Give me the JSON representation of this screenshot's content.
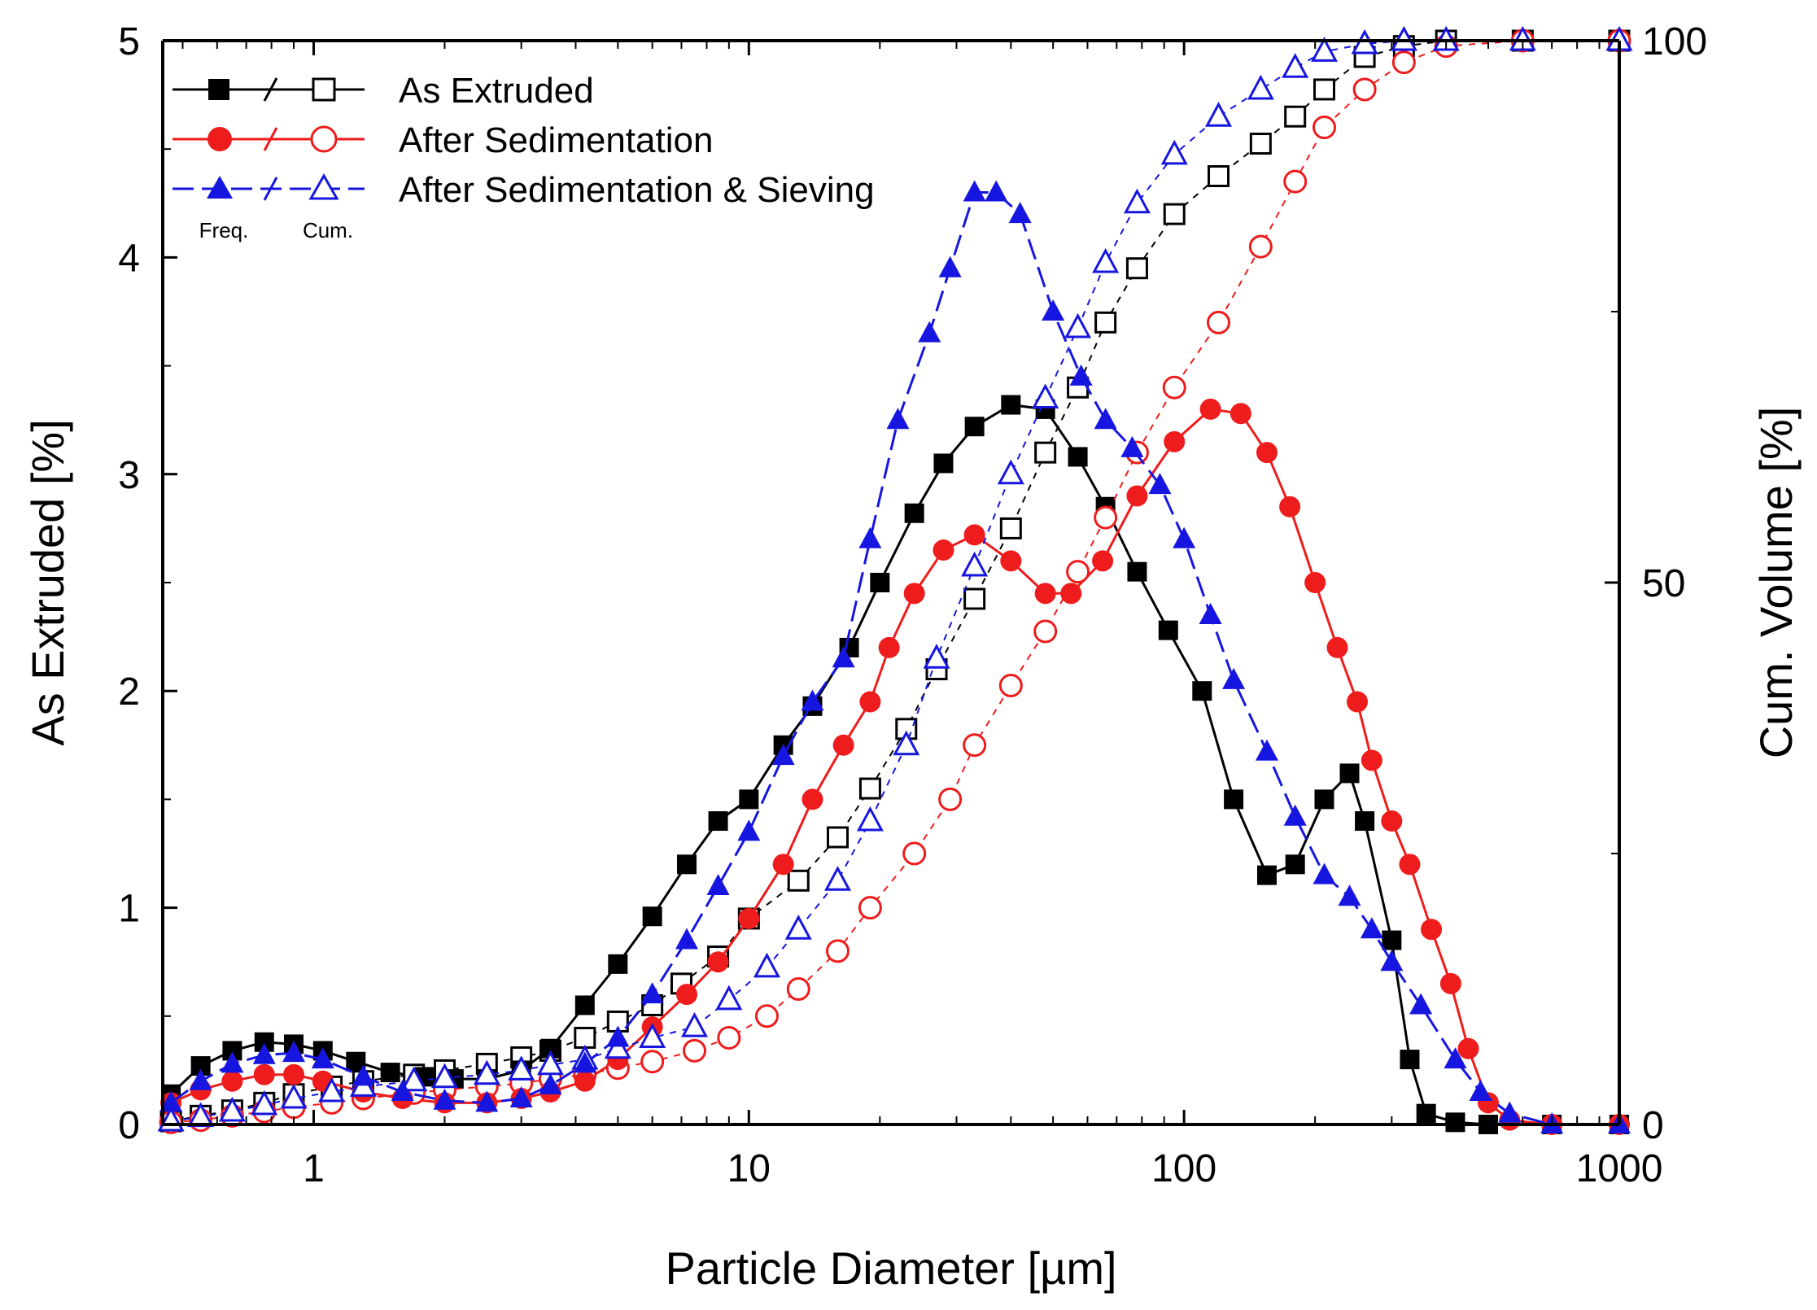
{
  "chart_data": {
    "type": "line",
    "xlabel": "Particle  Diameter [µm]",
    "ylabel_left": "As Extruded [%]",
    "ylabel_right": "Cum. Volume [%]",
    "x_scale": "log",
    "xlim": [
      0.45,
      1000
    ],
    "ylim_left": [
      0,
      5
    ],
    "ylim_right": [
      0,
      100
    ],
    "x_ticks": [
      1,
      10,
      100,
      1000
    ],
    "x_tick_labels": [
      "1",
      "10",
      "100",
      "1000"
    ],
    "y_left_ticks": [
      0,
      1,
      2,
      3,
      4,
      5
    ],
    "y_left_tick_labels": [
      "0",
      "1",
      "2",
      "3",
      "4",
      "5"
    ],
    "y_right_ticks": [
      0,
      50,
      100
    ],
    "y_right_tick_labels": [
      "0",
      "50",
      "100"
    ],
    "legend": {
      "col_freq": "Freq.",
      "col_cum": "Cum.",
      "entries": [
        "As Extruded",
        "After Sedimentation",
        "After Sedimentation & Sieving"
      ]
    },
    "colors": {
      "As Extruded": "#000000",
      "After Sedimentation": "#ee1c1c",
      "After Sedimentation & Sieving": "#1616e0"
    },
    "series": [
      {
        "name": "As Extruded",
        "marker": "square",
        "freq_points": [
          [
            0.47,
            0.14
          ],
          [
            0.55,
            0.27
          ],
          [
            0.65,
            0.34
          ],
          [
            0.77,
            0.38
          ],
          [
            0.9,
            0.37
          ],
          [
            1.05,
            0.34
          ],
          [
            1.25,
            0.29
          ],
          [
            1.5,
            0.24
          ],
          [
            1.8,
            0.22
          ],
          [
            2.1,
            0.21
          ],
          [
            2.5,
            0.21
          ],
          [
            3.0,
            0.25
          ],
          [
            3.5,
            0.35
          ],
          [
            4.2,
            0.55
          ],
          [
            5.0,
            0.74
          ],
          [
            6.0,
            0.96
          ],
          [
            7.2,
            1.2
          ],
          [
            8.5,
            1.4
          ],
          [
            10,
            1.5
          ],
          [
            12,
            1.75
          ],
          [
            14,
            1.93
          ],
          [
            17,
            2.2
          ],
          [
            20,
            2.5
          ],
          [
            24,
            2.82
          ],
          [
            28,
            3.05
          ],
          [
            33,
            3.22
          ],
          [
            40,
            3.32
          ],
          [
            48,
            3.3
          ],
          [
            57,
            3.08
          ],
          [
            66,
            2.85
          ],
          [
            78,
            2.55
          ],
          [
            92,
            2.28
          ],
          [
            110,
            2.0
          ],
          [
            130,
            1.5
          ],
          [
            155,
            1.15
          ],
          [
            180,
            1.2
          ],
          [
            210,
            1.5
          ],
          [
            240,
            1.62
          ],
          [
            260,
            1.4
          ],
          [
            300,
            0.85
          ],
          [
            330,
            0.3
          ],
          [
            360,
            0.05
          ],
          [
            420,
            0.01
          ],
          [
            500,
            0.0
          ],
          [
            700,
            0.0
          ],
          [
            1000,
            0.0
          ]
        ],
        "cum_points": [
          [
            0.47,
            0.3
          ],
          [
            0.55,
            0.8
          ],
          [
            0.65,
            1.3
          ],
          [
            0.77,
            2.0
          ],
          [
            0.9,
            2.8
          ],
          [
            1.1,
            3.5
          ],
          [
            1.3,
            4.0
          ],
          [
            1.7,
            4.6
          ],
          [
            2.0,
            5.0
          ],
          [
            2.5,
            5.6
          ],
          [
            3.0,
            6.2
          ],
          [
            3.5,
            6.8
          ],
          [
            4.2,
            8.0
          ],
          [
            5.0,
            9.5
          ],
          [
            6.0,
            11.0
          ],
          [
            7.0,
            13.0
          ],
          [
            8.5,
            15.5
          ],
          [
            10,
            19.0
          ],
          [
            13,
            22.5
          ],
          [
            16,
            26.5
          ],
          [
            19,
            31.0
          ],
          [
            23,
            36.5
          ],
          [
            27,
            42.0
          ],
          [
            33,
            48.5
          ],
          [
            40,
            55.0
          ],
          [
            48,
            62.0
          ],
          [
            57,
            68.0
          ],
          [
            66,
            74.0
          ],
          [
            78,
            79.0
          ],
          [
            95,
            84.0
          ],
          [
            120,
            87.5
          ],
          [
            150,
            90.5
          ],
          [
            180,
            93.0
          ],
          [
            210,
            95.5
          ],
          [
            260,
            98.5
          ],
          [
            320,
            99.5
          ],
          [
            400,
            100
          ],
          [
            600,
            100
          ],
          [
            1000,
            100
          ]
        ]
      },
      {
        "name": "After Sedimentation",
        "marker": "circle",
        "freq_points": [
          [
            0.47,
            0.1
          ],
          [
            0.55,
            0.16
          ],
          [
            0.65,
            0.2
          ],
          [
            0.77,
            0.23
          ],
          [
            0.9,
            0.23
          ],
          [
            1.05,
            0.2
          ],
          [
            1.3,
            0.15
          ],
          [
            1.6,
            0.12
          ],
          [
            2.0,
            0.1
          ],
          [
            2.5,
            0.1
          ],
          [
            3.0,
            0.12
          ],
          [
            3.5,
            0.15
          ],
          [
            4.2,
            0.2
          ],
          [
            5.0,
            0.3
          ],
          [
            6.0,
            0.45
          ],
          [
            7.2,
            0.6
          ],
          [
            8.5,
            0.75
          ],
          [
            10,
            0.95
          ],
          [
            12,
            1.2
          ],
          [
            14,
            1.5
          ],
          [
            16.5,
            1.75
          ],
          [
            19,
            1.95
          ],
          [
            21,
            2.2
          ],
          [
            24,
            2.45
          ],
          [
            28,
            2.65
          ],
          [
            33,
            2.72
          ],
          [
            40,
            2.6
          ],
          [
            48,
            2.45
          ],
          [
            55,
            2.45
          ],
          [
            65,
            2.6
          ],
          [
            78,
            2.9
          ],
          [
            95,
            3.15
          ],
          [
            115,
            3.3
          ],
          [
            135,
            3.28
          ],
          [
            155,
            3.1
          ],
          [
            175,
            2.85
          ],
          [
            200,
            2.5
          ],
          [
            225,
            2.2
          ],
          [
            250,
            1.95
          ],
          [
            270,
            1.68
          ],
          [
            300,
            1.4
          ],
          [
            330,
            1.2
          ],
          [
            370,
            0.9
          ],
          [
            410,
            0.65
          ],
          [
            450,
            0.35
          ],
          [
            500,
            0.1
          ],
          [
            560,
            0.02
          ],
          [
            700,
            0.0
          ],
          [
            1000,
            0.0
          ]
        ],
        "cum_points": [
          [
            0.47,
            0.2
          ],
          [
            0.55,
            0.4
          ],
          [
            0.65,
            0.8
          ],
          [
            0.77,
            1.2
          ],
          [
            0.9,
            1.6
          ],
          [
            1.1,
            2.0
          ],
          [
            1.3,
            2.4
          ],
          [
            1.7,
            2.9
          ],
          [
            2.0,
            3.2
          ],
          [
            2.5,
            3.5
          ],
          [
            3.0,
            3.8
          ],
          [
            3.5,
            4.2
          ],
          [
            4.2,
            4.6
          ],
          [
            5.0,
            5.2
          ],
          [
            6.0,
            5.8
          ],
          [
            7.5,
            6.8
          ],
          [
            9,
            8.0
          ],
          [
            11,
            10.0
          ],
          [
            13,
            12.5
          ],
          [
            16,
            16.0
          ],
          [
            19,
            20.0
          ],
          [
            24,
            25.0
          ],
          [
            29,
            30.0
          ],
          [
            33,
            35.0
          ],
          [
            40,
            40.5
          ],
          [
            48,
            45.5
          ],
          [
            57,
            51.0
          ],
          [
            66,
            56.0
          ],
          [
            78,
            62.0
          ],
          [
            95,
            68.0
          ],
          [
            120,
            74.0
          ],
          [
            150,
            81.0
          ],
          [
            180,
            87.0
          ],
          [
            210,
            92.0
          ],
          [
            260,
            95.5
          ],
          [
            320,
            98.0
          ],
          [
            400,
            99.5
          ],
          [
            600,
            100
          ],
          [
            1000,
            100
          ]
        ]
      },
      {
        "name": "After Sedimentation & Sieving",
        "marker": "triangle",
        "freq_points": [
          [
            0.47,
            0.1
          ],
          [
            0.55,
            0.2
          ],
          [
            0.65,
            0.28
          ],
          [
            0.77,
            0.32
          ],
          [
            0.9,
            0.33
          ],
          [
            1.05,
            0.3
          ],
          [
            1.3,
            0.22
          ],
          [
            1.6,
            0.15
          ],
          [
            2.0,
            0.11
          ],
          [
            2.5,
            0.1
          ],
          [
            3.0,
            0.12
          ],
          [
            3.5,
            0.18
          ],
          [
            4.2,
            0.28
          ],
          [
            5.0,
            0.4
          ],
          [
            6.0,
            0.6
          ],
          [
            7.2,
            0.85
          ],
          [
            8.5,
            1.1
          ],
          [
            10,
            1.35
          ],
          [
            12,
            1.7
          ],
          [
            14,
            1.95
          ],
          [
            16.5,
            2.15
          ],
          [
            19,
            2.7
          ],
          [
            22,
            3.25
          ],
          [
            26,
            3.65
          ],
          [
            29,
            3.95
          ],
          [
            33,
            4.3
          ],
          [
            37,
            4.3
          ],
          [
            42,
            4.2
          ],
          [
            50,
            3.75
          ],
          [
            58,
            3.45
          ],
          [
            66,
            3.25
          ],
          [
            76,
            3.12
          ],
          [
            88,
            2.95
          ],
          [
            100,
            2.7
          ],
          [
            115,
            2.35
          ],
          [
            130,
            2.05
          ],
          [
            155,
            1.72
          ],
          [
            180,
            1.42
          ],
          [
            210,
            1.15
          ],
          [
            240,
            1.05
          ],
          [
            270,
            0.9
          ],
          [
            300,
            0.75
          ],
          [
            350,
            0.55
          ],
          [
            420,
            0.3
          ],
          [
            480,
            0.15
          ],
          [
            560,
            0.05
          ],
          [
            700,
            0.0
          ],
          [
            1000,
            0.0
          ]
        ],
        "cum_points": [
          [
            0.47,
            0.3
          ],
          [
            0.55,
            0.7
          ],
          [
            0.65,
            1.2
          ],
          [
            0.77,
            1.8
          ],
          [
            0.9,
            2.4
          ],
          [
            1.1,
            3.0
          ],
          [
            1.3,
            3.5
          ],
          [
            1.7,
            4.0
          ],
          [
            2.0,
            4.3
          ],
          [
            2.5,
            4.6
          ],
          [
            3.0,
            5.0
          ],
          [
            3.5,
            5.5
          ],
          [
            4.2,
            6.0
          ],
          [
            5.0,
            7.0
          ],
          [
            6.0,
            8.0
          ],
          [
            7.5,
            9.0
          ],
          [
            9,
            11.5
          ],
          [
            11,
            14.5
          ],
          [
            13,
            18.0
          ],
          [
            16,
            22.5
          ],
          [
            19,
            28.0
          ],
          [
            23,
            35.0
          ],
          [
            27,
            43.0
          ],
          [
            33,
            51.5
          ],
          [
            40,
            60.0
          ],
          [
            48,
            67.0
          ],
          [
            57,
            73.5
          ],
          [
            66,
            79.5
          ],
          [
            78,
            85.0
          ],
          [
            95,
            89.5
          ],
          [
            120,
            93.0
          ],
          [
            150,
            95.5
          ],
          [
            180,
            97.5
          ],
          [
            210,
            99.0
          ],
          [
            260,
            99.7
          ],
          [
            320,
            100
          ],
          [
            400,
            100
          ],
          [
            600,
            100
          ],
          [
            1000,
            100
          ]
        ]
      }
    ]
  }
}
